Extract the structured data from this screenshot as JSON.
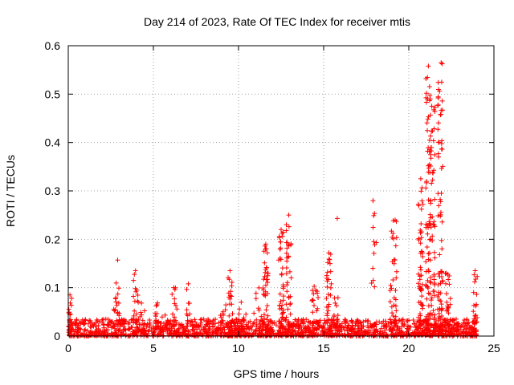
{
  "chart_data": {
    "type": "scatter",
    "title": "Day 214 of 2023, Rate Of TEC Index for receiver mtis",
    "xlabel": "GPS time / hours",
    "ylabel": "ROTI / TECUs",
    "xlim": [
      0,
      25
    ],
    "ylim": [
      0,
      0.6
    ],
    "x_ticks": [
      0,
      5,
      10,
      15,
      20,
      25
    ],
    "x_tick_labels": [
      "0",
      "5",
      "10",
      "15",
      "20",
      "25"
    ],
    "y_ticks": [
      0,
      0.1,
      0.2,
      0.3,
      0.4,
      0.5,
      0.6
    ],
    "y_tick_labels": [
      "0",
      "0.1",
      "0.2",
      "0.3",
      "0.4",
      "0.5",
      "0.6"
    ],
    "grid": true,
    "marker": "+",
    "series_color": "#ff0000",
    "peaks": [
      {
        "x": 0.1,
        "y": 0.085
      },
      {
        "x": 2.9,
        "y": 0.157
      },
      {
        "x": 3.95,
        "y": 0.135
      },
      {
        "x": 6.2,
        "y": 0.1
      },
      {
        "x": 7.05,
        "y": 0.108
      },
      {
        "x": 9.5,
        "y": 0.135
      },
      {
        "x": 11.6,
        "y": 0.19
      },
      {
        "x": 12.5,
        "y": 0.22
      },
      {
        "x": 12.95,
        "y": 0.25
      },
      {
        "x": 15.3,
        "y": 0.172
      },
      {
        "x": 15.8,
        "y": 0.243
      },
      {
        "x": 17.9,
        "y": 0.28
      },
      {
        "x": 18.1,
        "y": 0.193
      },
      {
        "x": 19.2,
        "y": 0.24
      },
      {
        "x": 20.7,
        "y": 0.325
      },
      {
        "x": 21.15,
        "y": 0.558
      },
      {
        "x": 21.35,
        "y": 0.475
      },
      {
        "x": 21.75,
        "y": 0.4
      },
      {
        "x": 21.9,
        "y": 0.565
      },
      {
        "x": 22.2,
        "y": 0.13
      },
      {
        "x": 23.9,
        "y": 0.135
      }
    ],
    "clusters": [
      {
        "x": 0.1,
        "spread": 0.12,
        "max": 0.085,
        "n": 25
      },
      {
        "x": 2.8,
        "spread": 0.2,
        "max": 0.11,
        "n": 25
      },
      {
        "x": 3.95,
        "spread": 0.15,
        "max": 0.135,
        "n": 22
      },
      {
        "x": 4.3,
        "spread": 0.2,
        "max": 0.07,
        "n": 12
      },
      {
        "x": 5.4,
        "spread": 0.3,
        "max": 0.07,
        "n": 15
      },
      {
        "x": 6.2,
        "spread": 0.2,
        "max": 0.1,
        "n": 18
      },
      {
        "x": 7.05,
        "spread": 0.1,
        "max": 0.108,
        "n": 10
      },
      {
        "x": 9.1,
        "spread": 0.2,
        "max": 0.07,
        "n": 12
      },
      {
        "x": 9.5,
        "spread": 0.15,
        "max": 0.135,
        "n": 25
      },
      {
        "x": 10.2,
        "spread": 0.3,
        "max": 0.07,
        "n": 15
      },
      {
        "x": 11.2,
        "spread": 0.3,
        "max": 0.11,
        "n": 20
      },
      {
        "x": 11.6,
        "spread": 0.15,
        "max": 0.19,
        "n": 40
      },
      {
        "x": 12.5,
        "spread": 0.15,
        "max": 0.22,
        "n": 45
      },
      {
        "x": 12.95,
        "spread": 0.15,
        "max": 0.25,
        "n": 40
      },
      {
        "x": 14.5,
        "spread": 0.2,
        "max": 0.11,
        "n": 25
      },
      {
        "x": 15.3,
        "spread": 0.15,
        "max": 0.172,
        "n": 35
      },
      {
        "x": 15.7,
        "spread": 0.15,
        "max": 0.085,
        "n": 15
      },
      {
        "x": 17.9,
        "spread": 0.1,
        "max": 0.28,
        "n": 12
      },
      {
        "x": 19.1,
        "spread": 0.2,
        "max": 0.24,
        "n": 40
      },
      {
        "x": 20.7,
        "spread": 0.15,
        "max": 0.33,
        "n": 55
      },
      {
        "x": 21.15,
        "spread": 0.15,
        "max": 0.558,
        "n": 75
      },
      {
        "x": 21.4,
        "spread": 0.15,
        "max": 0.475,
        "n": 60
      },
      {
        "x": 21.85,
        "spread": 0.15,
        "max": 0.565,
        "n": 75
      },
      {
        "x": 22.3,
        "spread": 0.15,
        "max": 0.135,
        "n": 35
      },
      {
        "x": 23.9,
        "spread": 0.12,
        "max": 0.135,
        "n": 25
      }
    ],
    "baseline": {
      "x_start": 0,
      "x_end": 24,
      "min": 0.0,
      "typical_max": 0.035,
      "n": 1600
    }
  }
}
